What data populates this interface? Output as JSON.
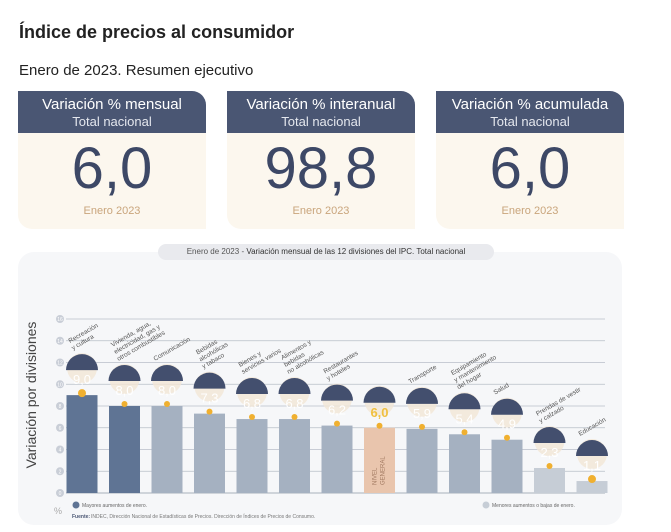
{
  "header": {
    "title": "Índice de precios al consumidor",
    "subtitle": "Enero de 2023. Resumen ejecutivo"
  },
  "cards": [
    {
      "label": "Variación % mensual",
      "scope": "Total nacional",
      "value": "6,0",
      "period": "Enero 2023"
    },
    {
      "label": "Variación % interanual",
      "scope": "Total nacional",
      "value": "98,8",
      "period": "Enero 2023"
    },
    {
      "label": "Variación % acumulada",
      "scope": "Total nacional",
      "value": "6,0",
      "period": "Enero 2023"
    }
  ],
  "chart_data": {
    "type": "bar",
    "title_prefix": "Enero de 2023",
    "title": "Variación mensual de las 12 divisiones del IPC. Total nacional",
    "ylabel": "Variación por divisiones",
    "yunit": "%",
    "ylim": [
      0,
      16
    ],
    "yticks": [
      0,
      2,
      4,
      6,
      8,
      10,
      12,
      14,
      16
    ],
    "grid": true,
    "categories": [
      "Recreación y cultura",
      "Vivienda, agua, electricidad, gas y otros combustibles",
      "Comunicación",
      "Bebidas alcohólicas y tabaco",
      "Bienes y servicios varios",
      "Alimentos y bebidas no alcohólicas",
      "Restaurantes y hoteles",
      "NIVEL GENERAL",
      "Transporte",
      "Equipamiento y mantenimiento del hogar",
      "Salud",
      "Prendas de vestir y calzado",
      "Educación"
    ],
    "label_lines": [
      [
        "Recreación",
        "y cultura"
      ],
      [
        "Vivienda, agua,",
        "electricidad, gas y",
        "otros combustibles"
      ],
      [
        "Comunicación"
      ],
      [
        "Bebidas",
        "alcohólicas",
        "y tabaco"
      ],
      [
        "Bienes y",
        "servicios varios"
      ],
      [
        "Alimentos y",
        "bebidas",
        "no alcohólicas"
      ],
      [
        "Restaurantes",
        "y hoteles"
      ],
      [],
      [
        "Transporte"
      ],
      [
        "Equipamiento",
        "y mantenimiento",
        "del hogar"
      ],
      [
        "Salud"
      ],
      [
        "Prendas de vestir",
        "y calzado"
      ],
      [
        "Educación"
      ]
    ],
    "values": [
      9.0,
      8.0,
      8.0,
      7.3,
      6.8,
      6.8,
      6.2,
      6.0,
      5.9,
      5.4,
      4.9,
      2.3,
      1.1
    ],
    "value_labels": [
      "9,0",
      "8,0",
      "8,0",
      "7,3",
      "6,8",
      "6,8",
      "6,2",
      "6,0",
      "5,9",
      "5,4",
      "4,9",
      "2,3",
      "1,1"
    ],
    "general_label": [
      "NIVEL",
      "GENERAL"
    ],
    "bar_groups": [
      "high",
      "high",
      "mid",
      "mid",
      "mid",
      "mid",
      "mid",
      "general",
      "mid",
      "mid",
      "mid",
      "low",
      "low"
    ],
    "colors": {
      "high": "#5f7494",
      "mid": "#a5b1c1",
      "low": "#c6cdd6",
      "general": "#e9c5ad",
      "badge": "#434f6e",
      "dot": "#f0b030",
      "general_value": "#f0c040",
      "axis": "#b8bec8"
    },
    "legend": {
      "high": "Mayores aumentos de enero.",
      "low": "Menores aumentos o bajas de enero."
    },
    "source_label": "Fuente:",
    "source": "INDEC, Dirección Nacional de Estadísticas de Precios. Dirección de Índices de Precios de Consumo."
  }
}
